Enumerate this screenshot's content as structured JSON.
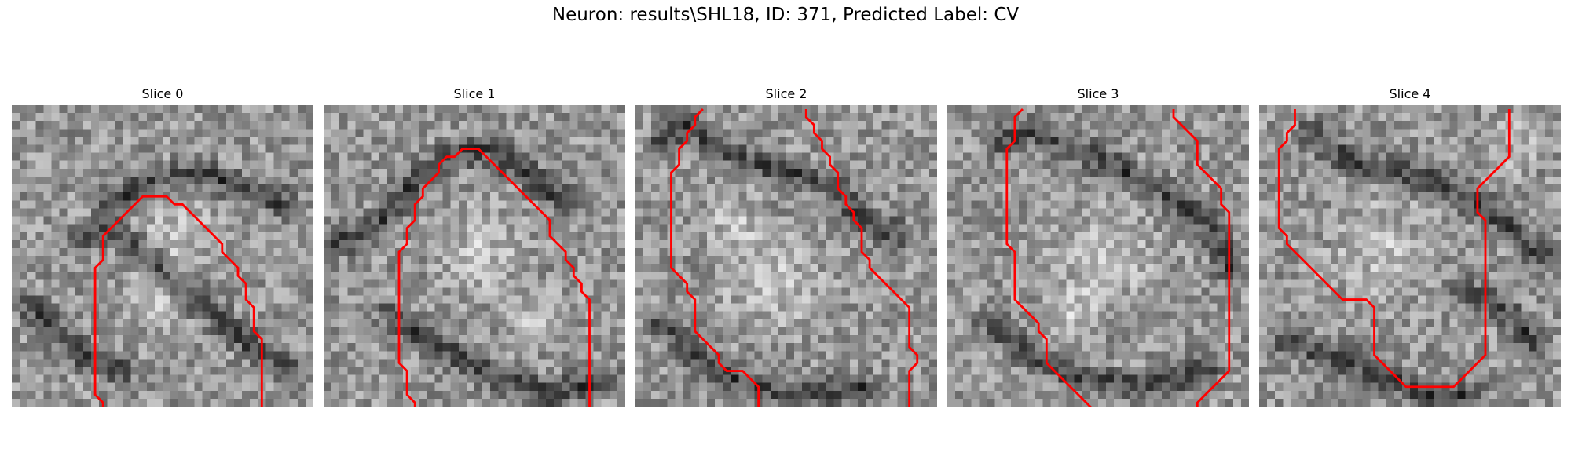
{
  "figure": {
    "title": "Neuron: results\\SHL18, ID: 371, Predicted Label: CV"
  },
  "panels": [
    {
      "title": "Slice 0",
      "seed": 11,
      "contour": [
        [
          11,
          38
        ],
        [
          11,
          37
        ],
        [
          10,
          36
        ],
        [
          10,
          20
        ],
        [
          11,
          19
        ],
        [
          11,
          16
        ],
        [
          12,
          15
        ],
        [
          14,
          13
        ],
        [
          15,
          12
        ],
        [
          16,
          11
        ],
        [
          19,
          11
        ],
        [
          20,
          12
        ],
        [
          21,
          12
        ],
        [
          22,
          13
        ],
        [
          26,
          17
        ],
        [
          26,
          18
        ],
        [
          28,
          20
        ],
        [
          28,
          21
        ],
        [
          29,
          22
        ],
        [
          29,
          24
        ],
        [
          30,
          25
        ],
        [
          30,
          28
        ],
        [
          31,
          29
        ],
        [
          31,
          38
        ]
      ],
      "dark_paths": [
        [
          [
            8,
            16
          ],
          [
            12,
            15
          ],
          [
            18,
            20
          ],
          [
            24,
            25
          ],
          [
            30,
            30
          ],
          [
            34,
            32
          ]
        ],
        [
          [
            12,
            12
          ],
          [
            17,
            9
          ],
          [
            23,
            8
          ],
          [
            29,
            10
          ],
          [
            34,
            12
          ]
        ],
        [
          [
            2,
            25
          ],
          [
            8,
            31
          ],
          [
            13,
            33
          ]
        ]
      ],
      "bright_blobs": [
        [
          20,
          16,
          7
        ],
        [
          17,
          24,
          5
        ]
      ]
    },
    {
      "title": "Slice 1",
      "seed": 23,
      "contour": [
        [
          11,
          38
        ],
        [
          11,
          37
        ],
        [
          10,
          36
        ],
        [
          10,
          33
        ],
        [
          9,
          32
        ],
        [
          9,
          18
        ],
        [
          10,
          17
        ],
        [
          10,
          15
        ],
        [
          11,
          14
        ],
        [
          11,
          12
        ],
        [
          12,
          11
        ],
        [
          12,
          10
        ],
        [
          13,
          9
        ],
        [
          14,
          8
        ],
        [
          14,
          7
        ],
        [
          15,
          6
        ],
        [
          16,
          6
        ],
        [
          17,
          5
        ],
        [
          19,
          5
        ],
        [
          20,
          6
        ],
        [
          25,
          11
        ],
        [
          27,
          13
        ],
        [
          28,
          14
        ],
        [
          28,
          16
        ],
        [
          30,
          18
        ],
        [
          30,
          19
        ],
        [
          31,
          20
        ],
        [
          31,
          21
        ],
        [
          32,
          22
        ],
        [
          32,
          23
        ],
        [
          33,
          24
        ],
        [
          33,
          38
        ]
      ],
      "dark_paths": [
        [
          [
            1,
            17
          ],
          [
            6,
            15
          ],
          [
            10,
            10
          ],
          [
            15,
            6
          ],
          [
            20,
            5
          ],
          [
            25,
            8
          ],
          [
            30,
            12
          ]
        ],
        [
          [
            8,
            26
          ],
          [
            14,
            30
          ],
          [
            20,
            33
          ],
          [
            28,
            36
          ],
          [
            35,
            34
          ]
        ]
      ],
      "bright_blobs": [
        [
          19,
          18,
          8
        ],
        [
          26,
          26,
          5
        ]
      ]
    },
    {
      "title": "Slice 2",
      "seed": 37,
      "contour": [
        [
          8,
          0
        ],
        [
          7,
          1
        ],
        [
          7,
          2
        ],
        [
          6,
          3
        ],
        [
          6,
          4
        ],
        [
          5,
          5
        ],
        [
          5,
          7
        ],
        [
          4,
          8
        ],
        [
          4,
          20
        ],
        [
          5,
          21
        ],
        [
          6,
          22
        ],
        [
          6,
          23
        ],
        [
          7,
          24
        ],
        [
          7,
          28
        ],
        [
          8,
          29
        ],
        [
          10,
          31
        ],
        [
          10,
          32
        ],
        [
          11,
          33
        ],
        [
          13,
          33
        ],
        [
          14,
          34
        ],
        [
          15,
          35
        ],
        [
          15,
          38
        ],
        [
          34,
          38
        ],
        [
          34,
          33
        ],
        [
          35,
          32
        ],
        [
          35,
          31
        ],
        [
          34,
          30
        ],
        [
          34,
          25
        ],
        [
          33,
          24
        ],
        [
          32,
          23
        ],
        [
          31,
          22
        ],
        [
          29,
          20
        ],
        [
          29,
          19
        ],
        [
          28,
          18
        ],
        [
          28,
          15
        ],
        [
          27,
          14
        ],
        [
          27,
          13
        ],
        [
          26,
          12
        ],
        [
          26,
          11
        ],
        [
          25,
          10
        ],
        [
          25,
          8
        ],
        [
          24,
          7
        ],
        [
          24,
          6
        ],
        [
          23,
          5
        ],
        [
          23,
          4
        ],
        [
          22,
          3
        ],
        [
          22,
          2
        ],
        [
          21,
          1
        ],
        [
          21,
          0
        ]
      ],
      "dark_paths": [
        [
          [
            3,
            4
          ],
          [
            6,
            2
          ],
          [
            10,
            5
          ],
          [
            14,
            7
          ],
          [
            20,
            8
          ],
          [
            25,
            10
          ],
          [
            28,
            14
          ],
          [
            33,
            16
          ]
        ],
        [
          [
            3,
            27
          ],
          [
            8,
            32
          ],
          [
            14,
            35
          ],
          [
            20,
            36
          ],
          [
            28,
            35
          ]
        ]
      ],
      "bright_blobs": [
        [
          17,
          22,
          9
        ],
        [
          12,
          14,
          5
        ]
      ]
    },
    {
      "title": "Slice 3",
      "seed": 53,
      "contour": [
        [
          9,
          0
        ],
        [
          8,
          1
        ],
        [
          8,
          4
        ],
        [
          7,
          5
        ],
        [
          7,
          17
        ],
        [
          8,
          18
        ],
        [
          8,
          24
        ],
        [
          9,
          25
        ],
        [
          10,
          26
        ],
        [
          11,
          27
        ],
        [
          11,
          28
        ],
        [
          12,
          29
        ],
        [
          12,
          32
        ],
        [
          13,
          33
        ],
        [
          14,
          34
        ],
        [
          15,
          35
        ],
        [
          18,
          38
        ],
        [
          31,
          38
        ],
        [
          31,
          37
        ],
        [
          33,
          35
        ],
        [
          34,
          34
        ],
        [
          35,
          33
        ],
        [
          35,
          13
        ],
        [
          34,
          12
        ],
        [
          34,
          10
        ],
        [
          32,
          8
        ],
        [
          31,
          7
        ],
        [
          31,
          4
        ],
        [
          30,
          3
        ],
        [
          29,
          2
        ],
        [
          28,
          1
        ],
        [
          28,
          0
        ]
      ],
      "dark_paths": [
        [
          [
            6,
            4
          ],
          [
            10,
            3
          ],
          [
            16,
            5
          ],
          [
            22,
            8
          ],
          [
            28,
            11
          ],
          [
            33,
            15
          ],
          [
            35,
            20
          ]
        ],
        [
          [
            5,
            27
          ],
          [
            10,
            31
          ],
          [
            16,
            34
          ],
          [
            24,
            35
          ],
          [
            32,
            33
          ]
        ]
      ],
      "bright_blobs": [
        [
          19,
          19,
          9
        ],
        [
          15,
          26,
          5
        ]
      ]
    },
    {
      "title": "Slice 4",
      "seed": 71,
      "contour": [
        [
          4,
          0
        ],
        [
          4,
          2
        ],
        [
          3,
          3
        ],
        [
          3,
          4
        ],
        [
          2,
          5
        ],
        [
          2,
          15
        ],
        [
          3,
          16
        ],
        [
          3,
          17
        ],
        [
          5,
          19
        ],
        [
          6,
          20
        ],
        [
          8,
          22
        ],
        [
          9,
          23
        ],
        [
          10,
          24
        ],
        [
          13,
          24
        ],
        [
          14,
          25
        ],
        [
          14,
          31
        ],
        [
          15,
          32
        ],
        [
          17,
          34
        ],
        [
          18,
          35
        ],
        [
          24,
          35
        ],
        [
          25,
          34
        ],
        [
          26,
          33
        ],
        [
          27,
          32
        ],
        [
          28,
          31
        ],
        [
          28,
          14
        ],
        [
          27,
          13
        ],
        [
          27,
          10
        ],
        [
          28,
          9
        ],
        [
          31,
          6
        ],
        [
          31,
          0
        ]
      ],
      "dark_paths": [
        [
          [
            6,
            3
          ],
          [
            10,
            6
          ],
          [
            16,
            8
          ],
          [
            22,
            9
          ],
          [
            27,
            12
          ],
          [
            31,
            15
          ],
          [
            35,
            18
          ]
        ],
        [
          [
            3,
            29
          ],
          [
            8,
            31
          ],
          [
            14,
            33
          ],
          [
            20,
            36
          ],
          [
            26,
            36
          ]
        ],
        [
          [
            25,
            23
          ],
          [
            30,
            25
          ],
          [
            34,
            29
          ]
        ]
      ],
      "bright_blobs": [
        [
          15,
          18,
          9
        ],
        [
          32,
          4,
          5
        ]
      ]
    }
  ],
  "colors": {
    "contour": "#ff0000",
    "background": "#ffffff"
  }
}
